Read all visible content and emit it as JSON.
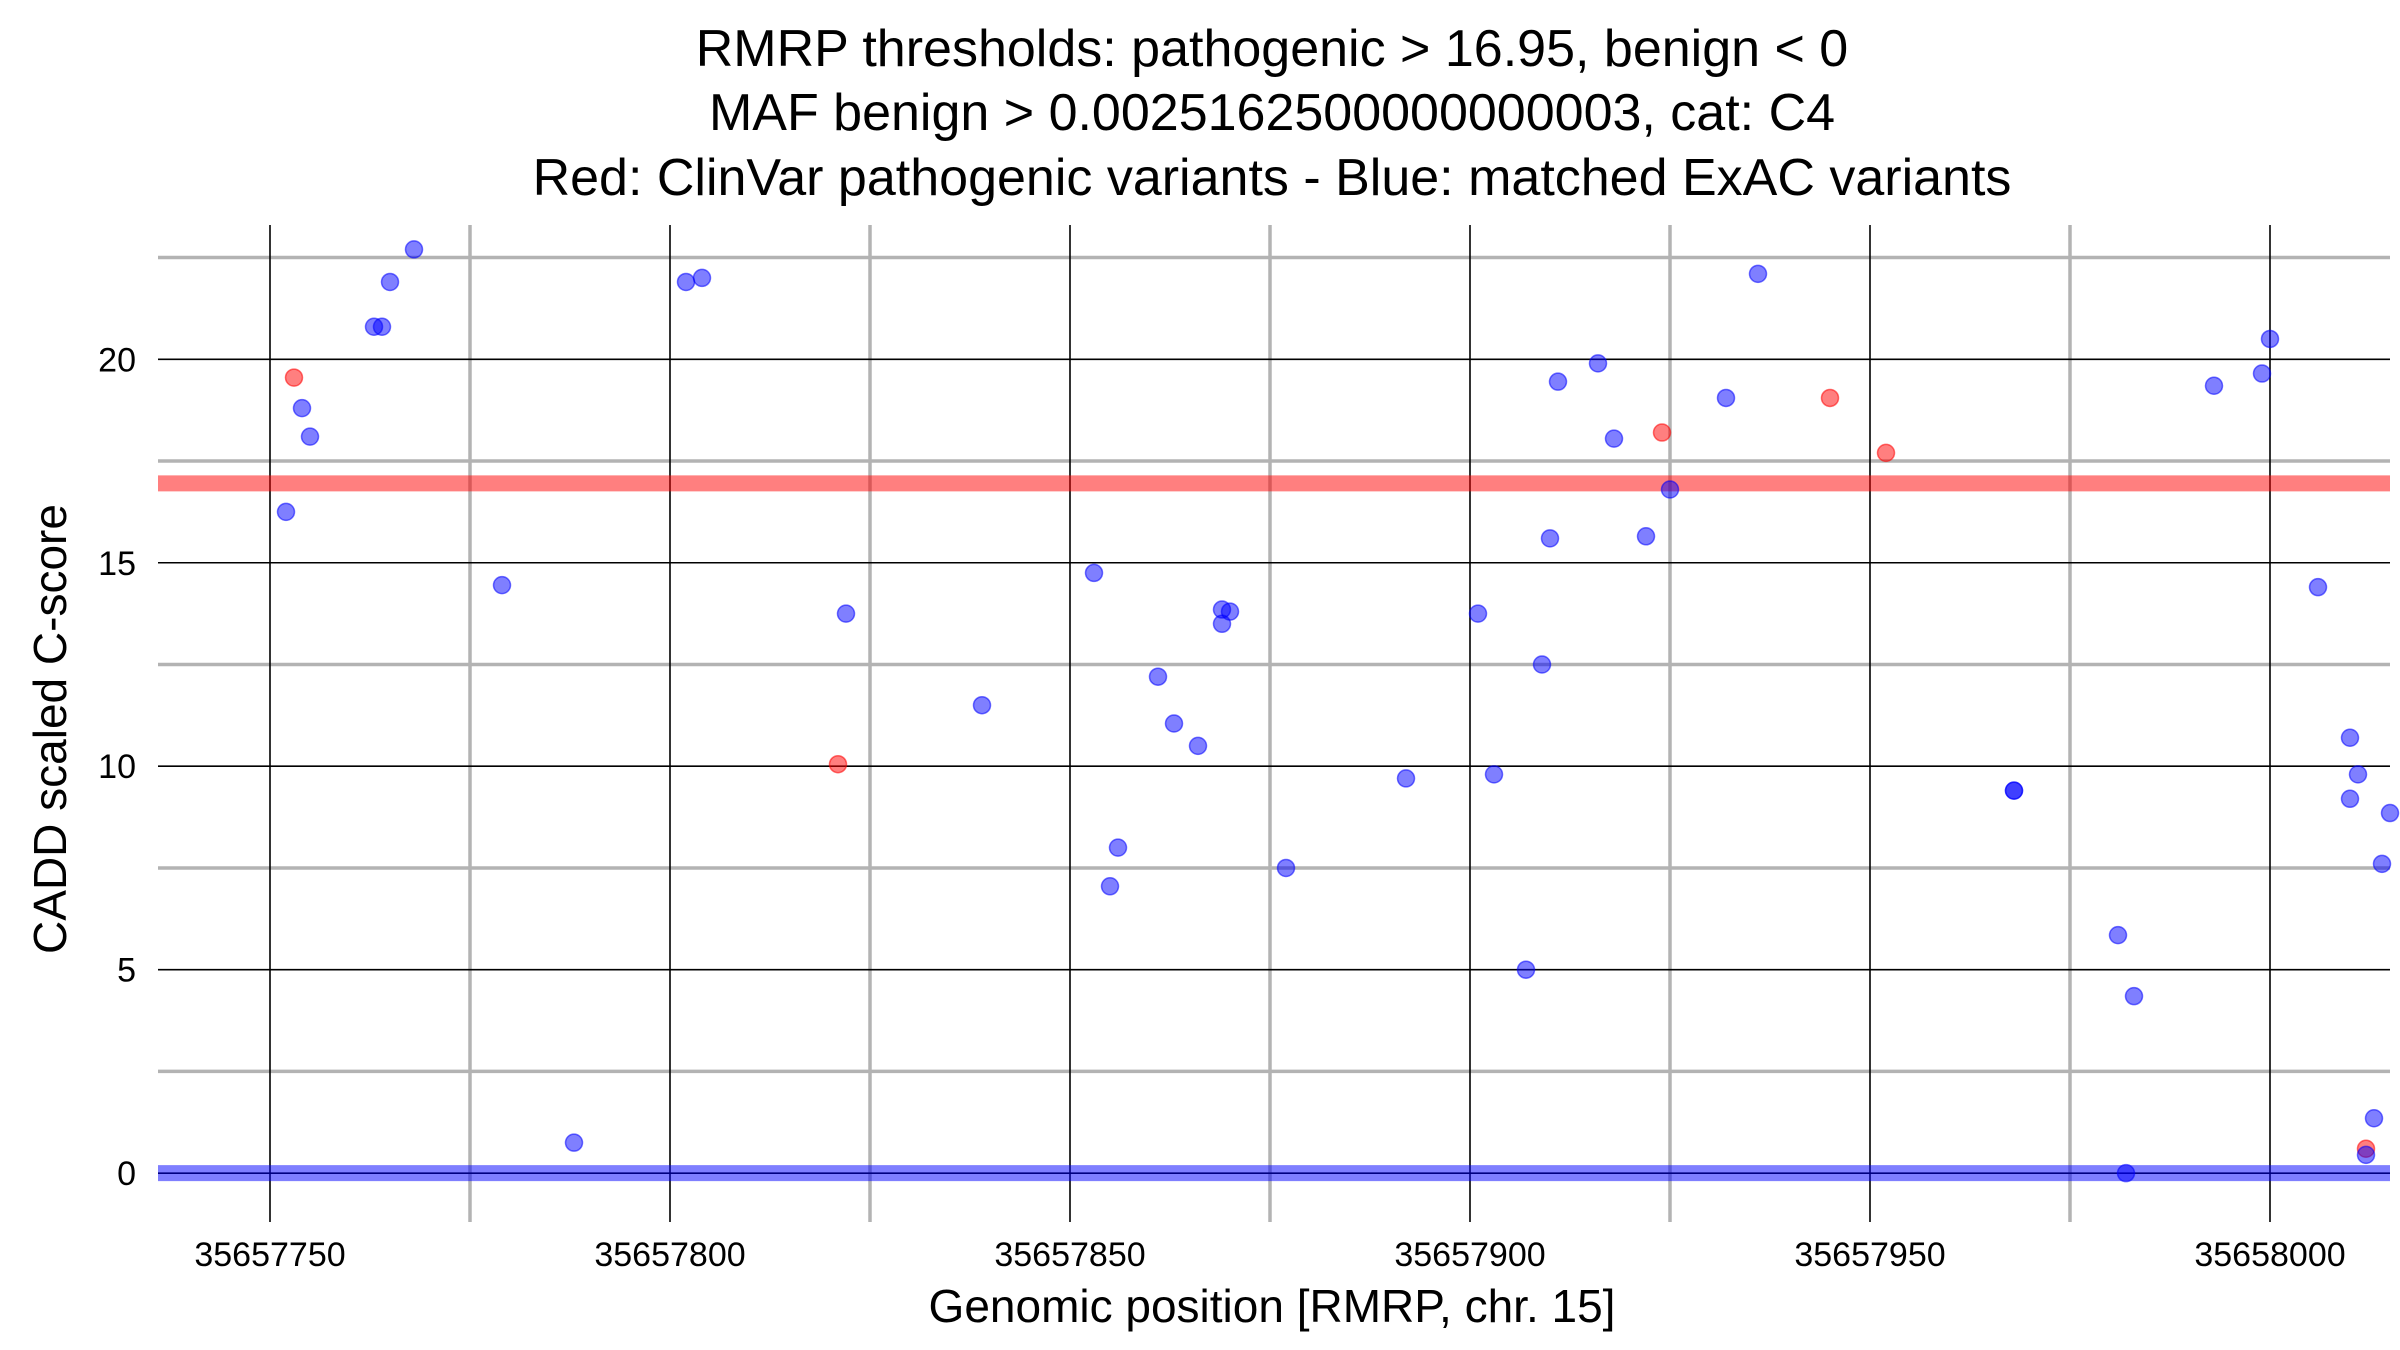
{
  "chart_data": {
    "type": "scatter",
    "title": [
      "RMRP thresholds: pathogenic > 16.95, benign < 0",
      "MAF benign > 0.0025162500000000003, cat: C4",
      "Red: ClinVar pathogenic variants - Blue: matched ExAC variants"
    ],
    "xlabel": "Genomic position [RMRP, chr. 15]",
    "ylabel": "CADD scaled C-score",
    "xlim": [
      35657736,
      35658015
    ],
    "ylim": [
      -1.2,
      23.3
    ],
    "xticks": [
      35657750,
      35657800,
      35657850,
      35657900,
      35657950,
      35658000
    ],
    "xtick_labels": [
      "35657750",
      "35657800",
      "35657850",
      "35657900",
      "35657950",
      "35658000"
    ],
    "yticks": [
      0,
      5,
      10,
      15,
      20
    ],
    "ytick_labels": [
      "0",
      "5",
      "10",
      "15",
      "20"
    ],
    "grid": true,
    "thresholds": {
      "pathogenic": {
        "value": 16.95,
        "color": "#ff0000"
      },
      "benign": {
        "value": 0,
        "color": "#0000ff"
      }
    },
    "series": [
      {
        "color": "#ff0000",
        "points": [
          [
            35657753,
            19.55
          ],
          [
            35657821,
            10.05
          ],
          [
            35657924,
            18.2
          ],
          [
            35657945,
            19.05
          ],
          [
            35657952,
            17.7
          ],
          [
            35658012,
            0.6
          ]
        ]
      },
      {
        "color": "#0000ff",
        "points": [
          [
            35657752,
            16.25
          ],
          [
            35657754,
            18.8
          ],
          [
            35657755,
            18.1
          ],
          [
            35657763,
            20.8
          ],
          [
            35657764,
            20.8
          ],
          [
            35657765,
            21.9
          ],
          [
            35657768,
            22.7
          ],
          [
            35657779,
            14.45
          ],
          [
            35657788,
            0.75
          ],
          [
            35657802,
            21.9
          ],
          [
            35657804,
            22.0
          ],
          [
            35657822,
            13.75
          ],
          [
            35657839,
            11.5
          ],
          [
            35657853,
            14.75
          ],
          [
            35657855,
            7.05
          ],
          [
            35657856,
            8.0
          ],
          [
            35657861,
            12.2
          ],
          [
            35657863,
            11.05
          ],
          [
            35657866,
            10.5
          ],
          [
            35657869,
            13.85
          ],
          [
            35657869,
            13.5
          ],
          [
            35657870,
            13.8
          ],
          [
            35657877,
            7.5
          ],
          [
            35657892,
            9.7
          ],
          [
            35657901,
            13.75
          ],
          [
            35657903,
            9.8
          ],
          [
            35657907,
            5.0
          ],
          [
            35657909,
            12.5
          ],
          [
            35657910,
            15.6
          ],
          [
            35657911,
            19.45
          ],
          [
            35657916,
            19.9
          ],
          [
            35657918,
            18.05
          ],
          [
            35657922,
            15.65
          ],
          [
            35657925,
            16.8
          ],
          [
            35657932,
            19.05
          ],
          [
            35657936,
            22.1
          ],
          [
            35657968,
            9.4
          ],
          [
            35657968,
            9.4
          ],
          [
            35657981,
            5.85
          ],
          [
            35657982,
            0.0
          ],
          [
            35657983,
            4.35
          ],
          [
            35657993,
            19.35
          ],
          [
            35657999,
            19.65
          ],
          [
            35658000,
            20.5
          ],
          [
            35658006,
            14.4
          ],
          [
            35658010,
            10.7
          ],
          [
            35658010,
            9.2
          ],
          [
            35658011,
            9.8
          ],
          [
            35658012,
            0.45
          ],
          [
            35658013,
            1.35
          ],
          [
            35658014,
            7.6
          ],
          [
            35658015,
            8.85
          ]
        ]
      }
    ]
  }
}
